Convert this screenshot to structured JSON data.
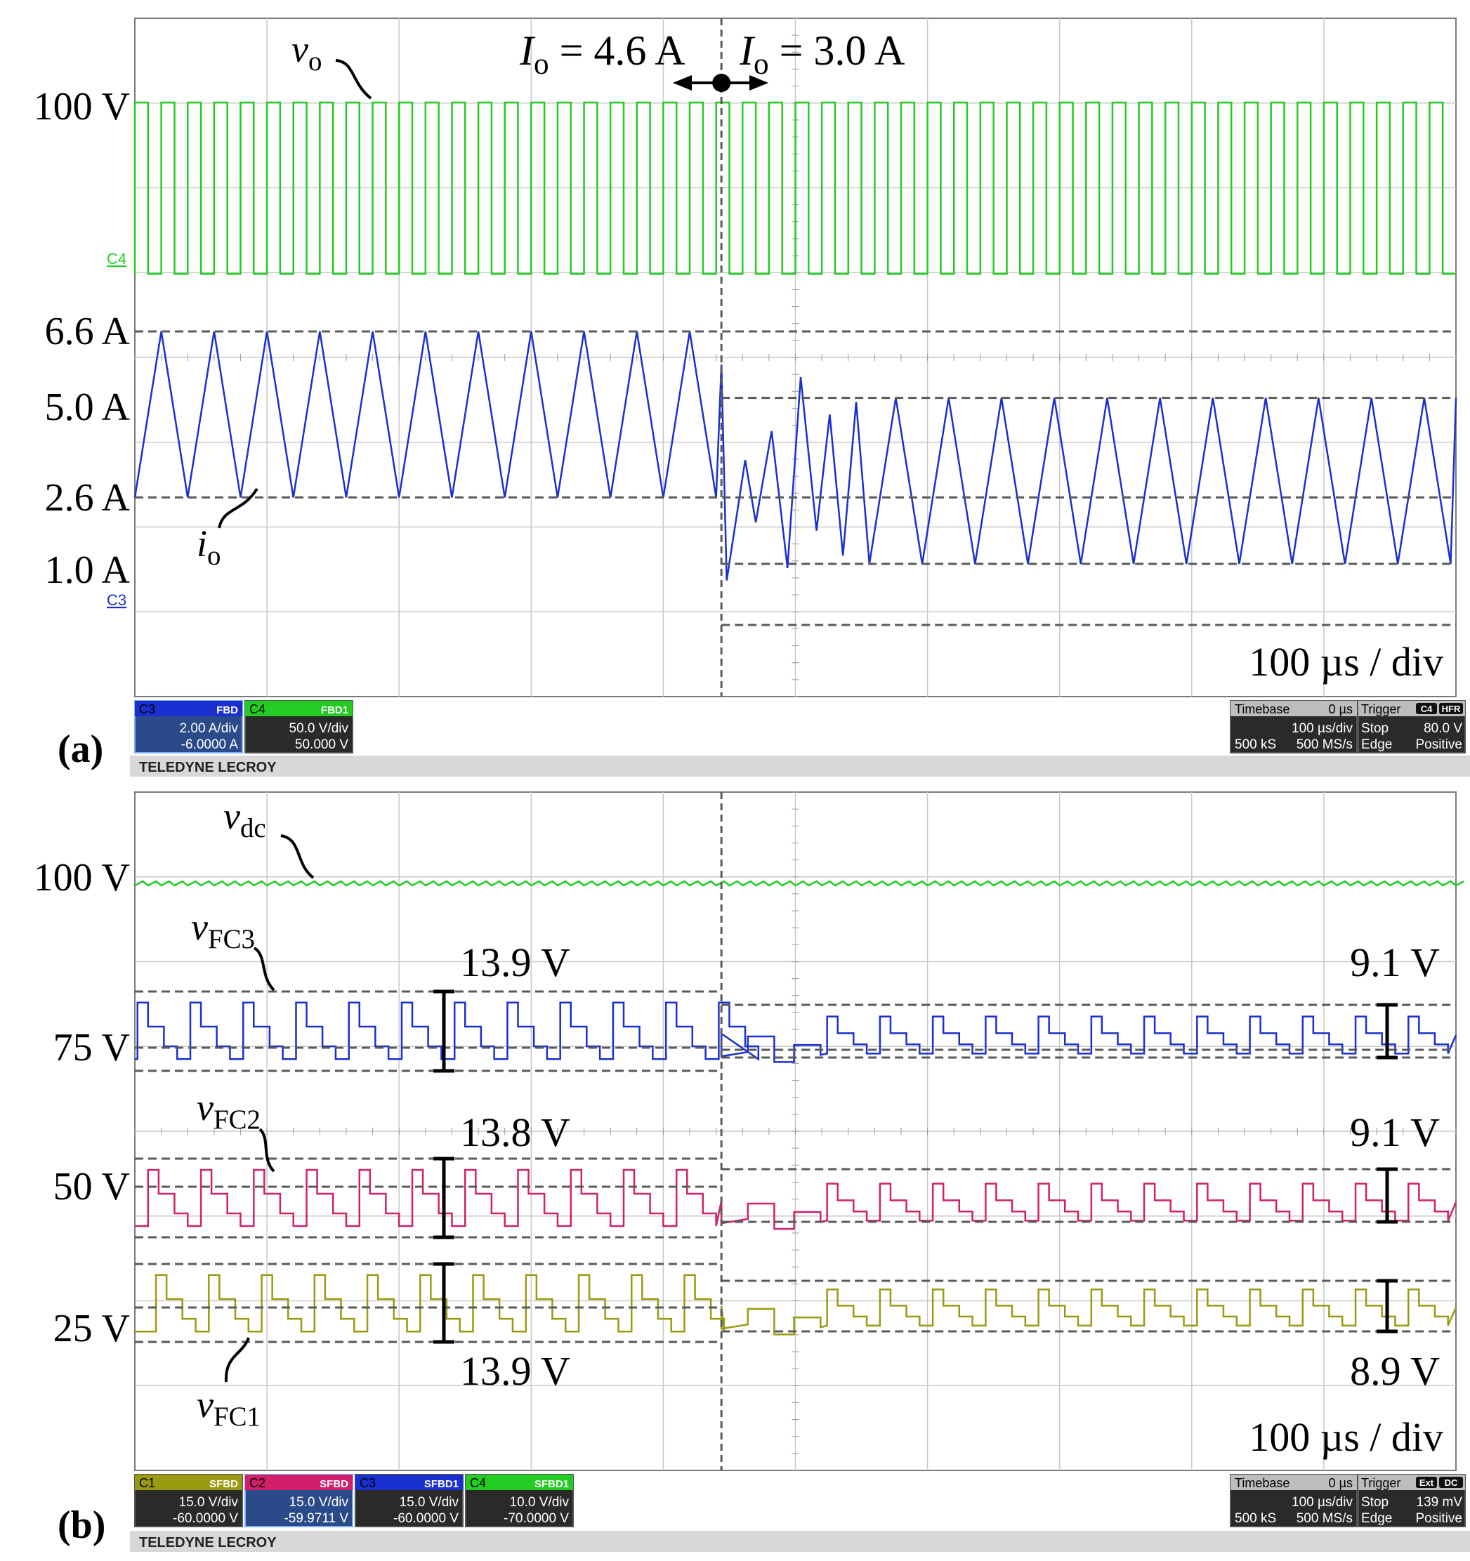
{
  "colors": {
    "vo": "#22cc22",
    "io": "#1a2fd0",
    "vdc": "#22cc22",
    "vfc3": "#1a2fd0",
    "vfc2": "#d0206a",
    "vfc1": "#9a9a10",
    "grid": "#c8c8c8",
    "ref": "#5a5a5a",
    "panel_dark": "#2a2a2a",
    "panel_blue": "#2a4a8a",
    "brand_bar": "#d8d8d8"
  },
  "chart_data": [
    {
      "panel": "(a)",
      "type": "line",
      "xlabel": "100 µs / div",
      "xlim": [
        0,
        1000
      ],
      "x_unit": "µs",
      "step_time": 444,
      "annotations": {
        "before": {
          "var": "I",
          "sub": "o",
          "rest": " = 4.6 A"
        },
        "after": {
          "var": "I",
          "sub": "o",
          "rest": " = 3.0 A"
        }
      },
      "series": [
        {
          "name": "v",
          "name_sub": "o",
          "shape": "square",
          "high": 100,
          "low": 0,
          "period_before": 20,
          "period_after": 20,
          "marker": "C4"
        },
        {
          "name": "i",
          "name_sub": "o",
          "shape": "triangle",
          "before_min": 2.6,
          "before_max": 6.6,
          "after_min": 1.0,
          "after_max": 5.0,
          "avg_before": 4.6,
          "avg_after": 3.0,
          "period_before": 40,
          "period_after": 40,
          "marker": "C3"
        }
      ],
      "level_labels": [
        "100 V",
        "6.6 A",
        "5.0 A",
        "2.6 A",
        "1.0 A"
      ],
      "channels": [
        {
          "id": "C3",
          "tags": "FBD",
          "scale": "2.00 A/div",
          "offset": "-6.0000 A"
        },
        {
          "id": "C4",
          "tags": "FBD1",
          "scale": "50.0 V/div",
          "offset": "50.000 V"
        }
      ],
      "timebase": {
        "label": "Timebase",
        "delay": "0 µs",
        "div": "100 µs/div",
        "samples": "500 kS",
        "rate": "500 MS/s"
      },
      "trigger": {
        "label": "Trigger",
        "src": "C4",
        "cpl": "HFR",
        "mode": "Stop",
        "level": "80.0 V",
        "type": "Edge",
        "slope": "Positive"
      },
      "brand": "TELEDYNE LECROY"
    },
    {
      "panel": "(b)",
      "type": "line",
      "xlabel": "100 µs / div",
      "xlim": [
        0,
        1000
      ],
      "x_unit": "µs",
      "step_time": 444,
      "series": [
        {
          "name": "v",
          "name_sub": "dc",
          "value": 100,
          "ripple": 1
        },
        {
          "name": "v",
          "name_sub": "FC3",
          "nominal": 75,
          "ripple_before": 13.9,
          "ripple_after": 9.1
        },
        {
          "name": "v",
          "name_sub": "FC2",
          "nominal": 50,
          "ripple_before": 13.8,
          "ripple_after": 9.1
        },
        {
          "name": "v",
          "name_sub": "FC1",
          "nominal": 25,
          "ripple_before": 13.9,
          "ripple_after": 8.9
        }
      ],
      "level_labels": [
        "100 V",
        "75 V",
        "50 V",
        "25 V"
      ],
      "ripple_labels": [
        "13.9 V",
        "9.1 V",
        "13.8 V",
        "9.1 V",
        "13.9 V",
        "8.9 V"
      ],
      "channels": [
        {
          "id": "C1",
          "tags": "SFBD",
          "scale": "15.0 V/div",
          "offset": "-60.0000 V"
        },
        {
          "id": "C2",
          "tags": "SFBD",
          "scale": "15.0 V/div",
          "offset": "-59.9711 V"
        },
        {
          "id": "C3",
          "tags": "SFBD1",
          "scale": "15.0 V/div",
          "offset": "-60.0000 V"
        },
        {
          "id": "C4",
          "tags": "SFBD1",
          "scale": "10.0 V/div",
          "offset": "-70.0000 V"
        }
      ],
      "timebase": {
        "label": "Timebase",
        "delay": "0 µs",
        "div": "100 µs/div",
        "samples": "500 kS",
        "rate": "500 MS/s"
      },
      "trigger": {
        "label": "Trigger",
        "src": "Ext",
        "cpl": "DC",
        "mode": "Stop",
        "level": "139 mV",
        "type": "Edge",
        "slope": "Positive"
      },
      "brand": "TELEDYNE LECROY"
    }
  ]
}
